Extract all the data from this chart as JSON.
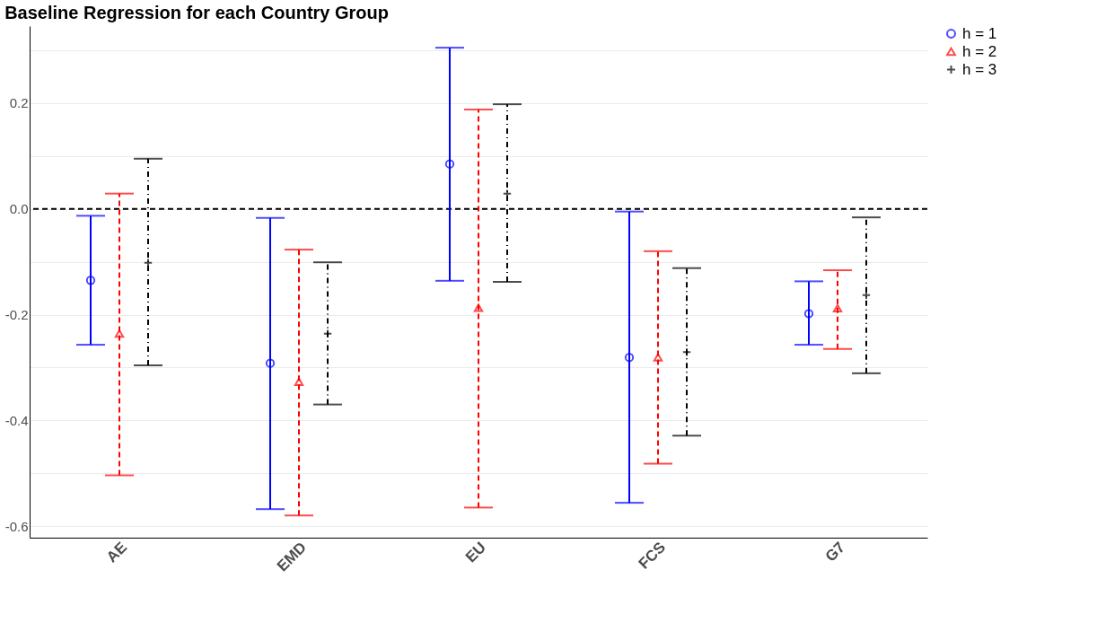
{
  "chart_data": {
    "type": "scatter",
    "title": "Baseline Regression for each Country Group",
    "categories": [
      "AE",
      "EMD",
      "EU",
      "FCS",
      "G7"
    ],
    "series": [
      {
        "name": "h = 1",
        "color": "#0000ff",
        "marker": "circle",
        "line_style": "solid",
        "values": [
          -0.135,
          -0.292,
          0.085,
          -0.281,
          -0.198
        ],
        "errors": [
          [
            -0.257,
            -0.013
          ],
          [
            -0.568,
            -0.017
          ],
          [
            -0.136,
            0.305
          ],
          [
            -0.556,
            -0.005
          ],
          [
            -0.257,
            -0.137
          ]
        ]
      },
      {
        "name": "h = 2",
        "color": "#ff0000",
        "marker": "triangle",
        "line_style": "dashed",
        "values": [
          -0.236,
          -0.327,
          -0.187,
          -0.281,
          -0.188
        ],
        "errors": [
          [
            -0.504,
            0.029
          ],
          [
            -0.58,
            -0.077
          ],
          [
            -0.565,
            0.188
          ],
          [
            -0.482,
            -0.08
          ],
          [
            -0.265,
            -0.116
          ]
        ]
      },
      {
        "name": "h = 3",
        "color": "#000000",
        "marker": "cross",
        "line_style": "dotted",
        "values": [
          -0.102,
          -0.236,
          0.029,
          -0.271,
          -0.163
        ],
        "errors": [
          [
            -0.296,
            0.095
          ],
          [
            -0.37,
            -0.101
          ],
          [
            -0.138,
            0.198
          ],
          [
            -0.429,
            -0.112
          ],
          [
            -0.311,
            -0.016
          ]
        ]
      }
    ],
    "ylim": [
      -0.622,
      0.346
    ],
    "yticks": [
      -0.6,
      {
        "value": -0.5,
        "label": null
      },
      -0.4,
      {
        "value": -0.3,
        "label": null
      },
      -0.2,
      {
        "value": -0.1,
        "label": null
      },
      {
        "value": 0,
        "label": "0.0"
      },
      {
        "value": 0.1,
        "label": null
      },
      0.2,
      {
        "value": 0.3,
        "label": null
      }
    ],
    "ref_lines": [
      {
        "axis": "y",
        "value": 0,
        "color": "#000000",
        "line_style": "dashed"
      }
    ],
    "grid": "y",
    "legend": "right"
  }
}
